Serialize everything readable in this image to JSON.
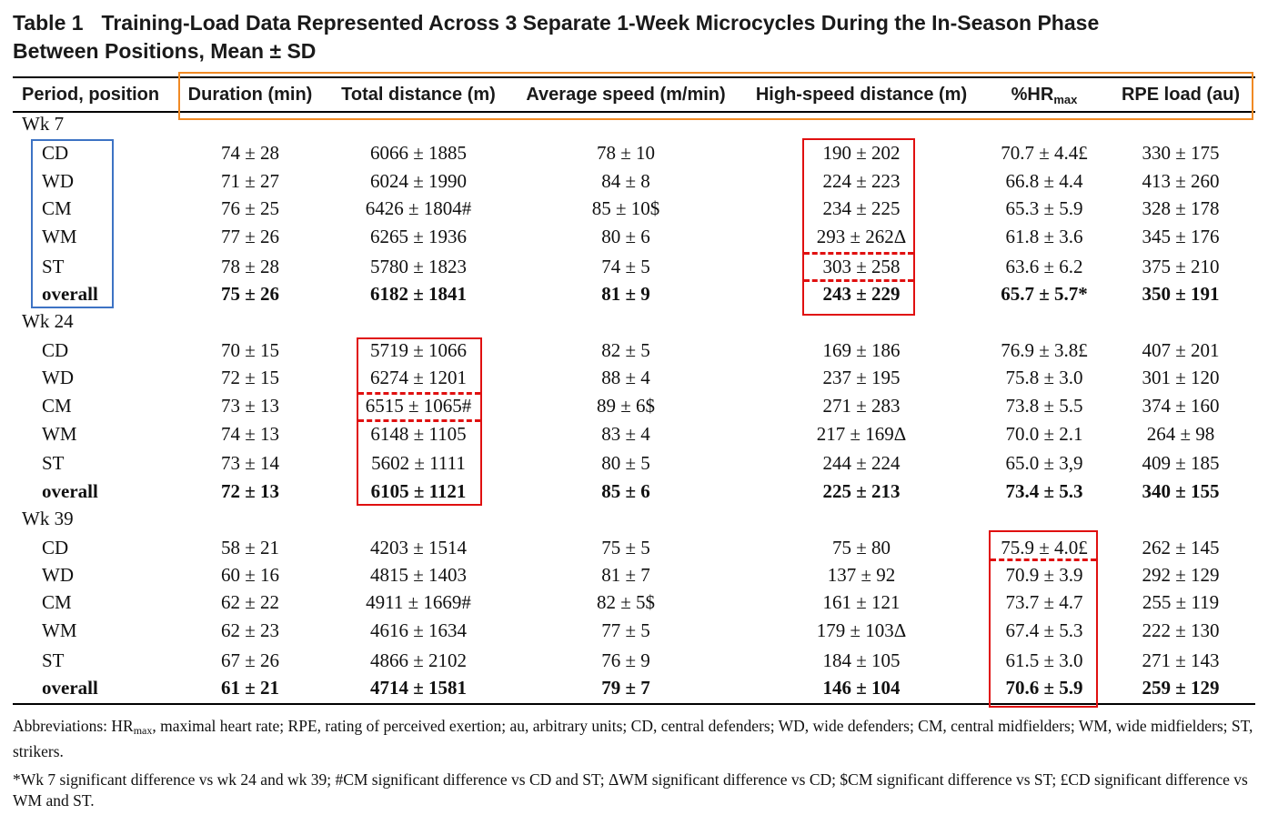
{
  "title": {
    "label": "Table 1",
    "line1": "Training-Load Data Represented Across 3 Separate 1-Week Microcycles During the In-Season Phase",
    "line2": "Between Positions, Mean ± SD"
  },
  "headers": {
    "period": "Period, position",
    "duration": "Duration (min)",
    "total_distance": "Total distance (m)",
    "avg_speed": "Average speed (m/min)",
    "hs_distance": "High-speed distance (m)",
    "hrmax_prefix": "%HR",
    "hrmax_sub": "max",
    "rpe": "RPE load (au)"
  },
  "periods": [
    {
      "label": "Wk 7",
      "rows": [
        {
          "pos": "CD",
          "dur": "74 ± 28",
          "td": "6066 ± 1885",
          "spd": "78 ± 10",
          "hsd": "190 ± 202",
          "hr": "70.7 ± 4.4£",
          "rpe": "330 ± 175"
        },
        {
          "pos": "WD",
          "dur": "71 ± 27",
          "td": "6024 ± 1990",
          "spd": "84 ± 8",
          "hsd": "224 ± 223",
          "hr": "66.8 ± 4.4",
          "rpe": "413 ± 260"
        },
        {
          "pos": "CM",
          "dur": "76 ± 25",
          "td": "6426 ± 1804#",
          "spd": "85 ± 10$",
          "hsd": "234 ± 225",
          "hr": "65.3 ± 5.9",
          "rpe": "328 ± 178"
        },
        {
          "pos": "WM",
          "dur": "77 ± 26",
          "td": "6265 ± 1936",
          "spd": "80 ± 6",
          "hsd": "293 ± 262Δ",
          "hr": "61.8 ± 3.6",
          "rpe": "345 ± 176"
        },
        {
          "pos": "ST",
          "dur": "78 ± 28",
          "td": "5780 ± 1823",
          "spd": "74 ± 5",
          "hsd": "303 ± 258",
          "hr": "63.6 ± 6.2",
          "rpe": "375 ± 210"
        },
        {
          "pos": "overall",
          "dur": "75 ± 26",
          "td": "6182 ± 1841",
          "spd": "81 ± 9",
          "hsd": "243 ± 229",
          "hr": "65.7 ± 5.7*",
          "rpe": "350 ± 191"
        }
      ]
    },
    {
      "label": "Wk 24",
      "rows": [
        {
          "pos": "CD",
          "dur": "70 ± 15",
          "td": "5719 ± 1066",
          "spd": "82 ± 5",
          "hsd": "169 ± 186",
          "hr": "76.9 ± 3.8£",
          "rpe": "407 ± 201"
        },
        {
          "pos": "WD",
          "dur": "72 ± 15",
          "td": "6274 ± 1201",
          "spd": "88 ± 4",
          "hsd": "237 ± 195",
          "hr": "75.8 ± 3.0",
          "rpe": "301 ± 120"
        },
        {
          "pos": "CM",
          "dur": "73 ± 13",
          "td": "6515 ± 1065#",
          "spd": "89 ± 6$",
          "hsd": "271 ± 283",
          "hr": "73.8 ± 5.5",
          "rpe": "374 ± 160"
        },
        {
          "pos": "WM",
          "dur": "74 ± 13",
          "td": "6148 ± 1105",
          "spd": "83 ± 4",
          "hsd": "217 ± 169Δ",
          "hr": "70.0 ± 2.1",
          "rpe": "264 ± 98"
        },
        {
          "pos": "ST",
          "dur": "73 ± 14",
          "td": "5602 ± 1111",
          "spd": "80 ± 5",
          "hsd": "244 ± 224",
          "hr": "65.0 ± 3,9",
          "rpe": "409 ± 185"
        },
        {
          "pos": "overall",
          "dur": "72 ± 13",
          "td": "6105 ± 1121",
          "spd": "85 ± 6",
          "hsd": "225 ± 213",
          "hr": "73.4 ± 5.3",
          "rpe": "340 ± 155"
        }
      ]
    },
    {
      "label": "Wk 39",
      "rows": [
        {
          "pos": "CD",
          "dur": "58 ± 21",
          "td": "4203 ± 1514",
          "spd": "75 ± 5",
          "hsd": "75 ± 80",
          "hr": "75.9 ± 4.0£",
          "rpe": "262 ± 145"
        },
        {
          "pos": "WD",
          "dur": "60 ± 16",
          "td": "4815 ± 1403",
          "spd": "81 ± 7",
          "hsd": "137 ± 92",
          "hr": "70.9 ± 3.9",
          "rpe": "292 ± 129"
        },
        {
          "pos": "CM",
          "dur": "62 ± 22",
          "td": "4911 ± 1669#",
          "spd": "82 ± 5$",
          "hsd": "161 ± 121",
          "hr": "73.7 ± 4.7",
          "rpe": "255 ± 119"
        },
        {
          "pos": "WM",
          "dur": "62 ± 23",
          "td": "4616 ± 1634",
          "spd": "77 ± 5",
          "hsd": "179 ± 103Δ",
          "hr": "67.4 ± 5.3",
          "rpe": "222 ± 130"
        },
        {
          "pos": "ST",
          "dur": "67 ± 26",
          "td": "4866 ± 2102",
          "spd": "76 ± 9",
          "hsd": "184 ± 105",
          "hr": "61.5 ± 3.0",
          "rpe": "271 ± 143"
        },
        {
          "pos": "overall",
          "dur": "61 ± 21",
          "td": "4714 ± 1581",
          "spd": "79 ± 7",
          "hsd": "146 ± 104",
          "hr": "70.6 ± 5.9",
          "rpe": "259 ± 129"
        }
      ]
    }
  ],
  "footnotes": {
    "abbrev_prefix": "Abbreviations: HR",
    "abbrev_sub": "max",
    "abbrev_rest": ", maximal heart rate; RPE, rating of perceived exertion; au, arbitrary units; CD, central defenders; WD, wide defenders; CM, central midfielders; WM, wide midfielders; ST, strikers.",
    "significance": "*Wk 7 significant difference vs wk 24 and wk 39; #CM significant difference vs CD and ST; ΔWM significant difference vs CD; $CM significant difference vs ST; £CD significant difference vs WM and ST."
  },
  "annotation_colors": {
    "header_box": "#f08a24",
    "position_box": "#3d73c4",
    "highlight_box": "#e01010"
  }
}
